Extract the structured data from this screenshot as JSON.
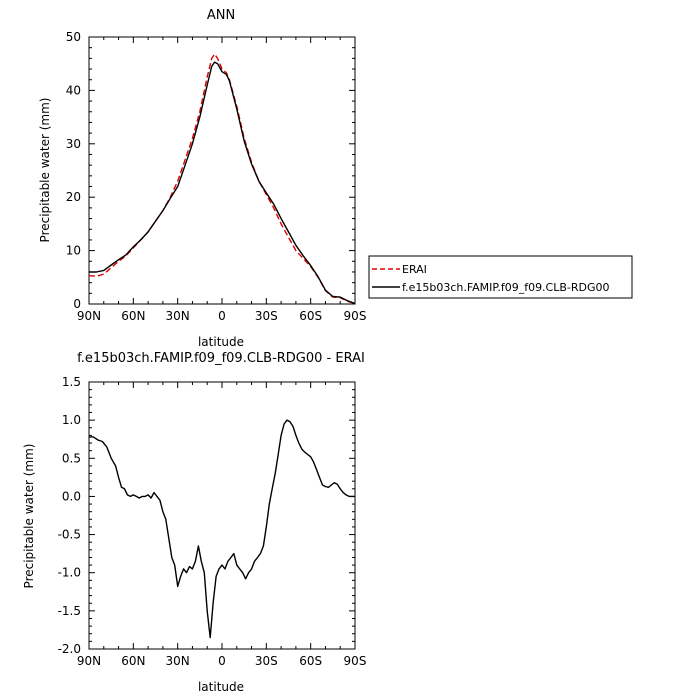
{
  "chart_data": [
    {
      "type": "line",
      "title": "ANN",
      "xlabel": "latitude",
      "ylabel": "Precipitable water (mm)",
      "xlim": [
        90,
        -90
      ],
      "ylim": [
        0,
        50
      ],
      "x_ticks": [
        90,
        60,
        30,
        0,
        -30,
        -60,
        -90
      ],
      "x_tick_labels": [
        "90N",
        "60N",
        "30N",
        "0",
        "30S",
        "60S",
        "90S"
      ],
      "y_ticks": [
        0,
        10,
        20,
        30,
        40,
        50
      ],
      "y_tick_labels": [
        "0",
        "10",
        "20",
        "30",
        "40",
        "50"
      ],
      "legend": {
        "placement": "right",
        "entries": [
          "ERAI",
          "f.e15b03ch.FAMIP.f09_f09.CLB-RDG00"
        ]
      },
      "series": [
        {
          "name": "ERAI",
          "color": "#dd0000",
          "dash": "dashed",
          "x": [
            90,
            85,
            80,
            75,
            70,
            65,
            60,
            55,
            50,
            45,
            40,
            35,
            30,
            25,
            20,
            15,
            10,
            7,
            5,
            3,
            0,
            -3,
            -5,
            -10,
            -15,
            -20,
            -25,
            -30,
            -35,
            -40,
            -45,
            -50,
            -55,
            -60,
            -65,
            -70,
            -75,
            -80,
            -85,
            -90
          ],
          "y": [
            5.3,
            5.2,
            5.6,
            6.8,
            8.0,
            9.0,
            10.5,
            12.0,
            13.5,
            15.5,
            17.5,
            20.0,
            23.0,
            27.0,
            31.0,
            36.0,
            42.5,
            46.0,
            46.8,
            46.0,
            44.0,
            43.3,
            42.0,
            37.0,
            31.0,
            26.5,
            23.0,
            20.5,
            18.0,
            15.0,
            12.5,
            10.0,
            8.5,
            7.0,
            5.0,
            2.5,
            1.3,
            1.2,
            0.5,
            0.1
          ]
        },
        {
          "name": "f.e15b03ch.FAMIP.f09_f09.CLB-RDG00",
          "color": "#000000",
          "dash": "solid",
          "x": [
            90,
            85,
            80,
            75,
            70,
            65,
            60,
            55,
            50,
            45,
            40,
            35,
            30,
            25,
            20,
            15,
            10,
            7,
            5,
            3,
            0,
            -3,
            -5,
            -10,
            -15,
            -20,
            -25,
            -30,
            -35,
            -40,
            -45,
            -50,
            -55,
            -60,
            -65,
            -70,
            -75,
            -80,
            -85,
            -90
          ],
          "y": [
            6.0,
            6.0,
            6.3,
            7.3,
            8.3,
            9.2,
            10.7,
            12.0,
            13.5,
            15.5,
            17.5,
            19.8,
            22.0,
            26.0,
            30.0,
            35.0,
            41.0,
            44.5,
            45.3,
            45.0,
            43.5,
            43.0,
            41.8,
            36.5,
            30.5,
            26.2,
            23.0,
            20.8,
            18.7,
            16.0,
            13.5,
            11.0,
            9.0,
            7.2,
            5.1,
            2.6,
            1.4,
            1.3,
            0.6,
            0.1
          ]
        }
      ]
    },
    {
      "type": "line",
      "title": "f.e15b03ch.FAMIP.f09_f09.CLB-RDG00 - ERAI",
      "xlabel": "latitude",
      "ylabel": "Precipitable water (mm)",
      "xlim": [
        90,
        -90
      ],
      "ylim": [
        -2.0,
        1.5
      ],
      "x_ticks": [
        90,
        60,
        30,
        0,
        -30,
        -60,
        -90
      ],
      "x_tick_labels": [
        "90N",
        "60N",
        "30N",
        "0",
        "30S",
        "60S",
        "90S"
      ],
      "y_ticks": [
        -2.0,
        -1.5,
        -1.0,
        -0.5,
        0.0,
        0.5,
        1.0,
        1.5
      ],
      "y_tick_labels": [
        "-2.0",
        "-1.5",
        "-1.0",
        "-0.5",
        "0.0",
        "0.5",
        "1.0",
        "1.5"
      ],
      "series": [
        {
          "color": "#000000",
          "dash": "solid",
          "x": [
            90,
            87,
            84,
            81,
            78,
            75,
            72,
            70,
            68,
            66,
            64,
            62,
            60,
            58,
            56,
            54,
            52,
            50,
            48,
            46,
            44,
            42,
            40,
            38,
            36,
            34,
            32,
            30,
            28,
            26,
            24,
            22,
            20,
            18,
            16,
            14,
            12,
            10,
            8,
            6,
            4,
            2,
            0,
            -2,
            -4,
            -6,
            -8,
            -10,
            -12,
            -14,
            -16,
            -18,
            -20,
            -22,
            -24,
            -26,
            -28,
            -30,
            -32,
            -34,
            -36,
            -38,
            -40,
            -42,
            -44,
            -46,
            -48,
            -50,
            -52,
            -54,
            -56,
            -58,
            -60,
            -62,
            -64,
            -66,
            -68,
            -70,
            -72,
            -74,
            -76,
            -78,
            -80,
            -82,
            -84,
            -86,
            -88,
            -90
          ],
          "y": [
            0.78,
            0.78,
            0.74,
            0.72,
            0.65,
            0.5,
            0.4,
            0.25,
            0.12,
            0.1,
            0.02,
            0.0,
            0.02,
            0.0,
            -0.02,
            0.0,
            0.0,
            0.02,
            -0.02,
            0.05,
            0.0,
            -0.05,
            -0.2,
            -0.3,
            -0.55,
            -0.8,
            -0.9,
            -1.18,
            -1.05,
            -0.95,
            -1.0,
            -0.92,
            -0.95,
            -0.85,
            -0.65,
            -0.85,
            -1.0,
            -1.5,
            -1.85,
            -1.4,
            -1.05,
            -0.95,
            -0.9,
            -0.95,
            -0.85,
            -0.8,
            -0.75,
            -0.9,
            -0.95,
            -1.0,
            -1.08,
            -1.0,
            -0.95,
            -0.85,
            -0.8,
            -0.75,
            -0.65,
            -0.4,
            -0.1,
            0.1,
            0.3,
            0.55,
            0.8,
            0.95,
            1.0,
            0.98,
            0.92,
            0.8,
            0.7,
            0.62,
            0.58,
            0.55,
            0.52,
            0.45,
            0.35,
            0.25,
            0.15,
            0.13,
            0.12,
            0.15,
            0.18,
            0.16,
            0.1,
            0.05,
            0.02,
            0.0,
            0.0,
            0.0
          ]
        }
      ]
    }
  ]
}
